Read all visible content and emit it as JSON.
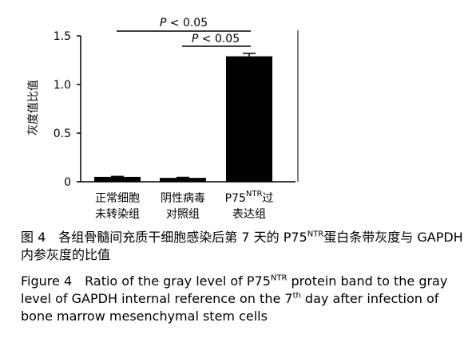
{
  "chart_data": {
    "type": "bar",
    "categories": [
      {
        "line1": "正常细胞",
        "line2": "未转染组"
      },
      {
        "line1": "阴性病毒",
        "line2": "对照组"
      },
      {
        "line1_main": "P75",
        "line1_sup": "NTR",
        "line1_tail": "过",
        "line2": "表达组"
      }
    ],
    "values": [
      0.05,
      0.04,
      1.29
    ],
    "errors": [
      0.005,
      0.005,
      0.03
    ],
    "ylabel": "灰度值比值",
    "ylim": [
      0,
      1.5
    ],
    "yticks": [
      "0",
      "0.5",
      "1.0",
      "1.5"
    ],
    "grid": false,
    "bar_color": "#000000",
    "significance": [
      {
        "label_italic": "P",
        "label_rest": " < 0.05"
      },
      {
        "label_italic": "P",
        "label_rest": " < 0.05"
      }
    ]
  },
  "caption_cn": {
    "prefix": "图 4　各组骨髓间充质干细胞感染后第 7 天的 P75",
    "sup": "NTR",
    "suffix": "蛋白条带灰度与 GAPDH 内参灰度的比值"
  },
  "caption_en": {
    "part1": "Figure 4　Ratio of the gray level of P75",
    "sup1": "NTR",
    "part2": " protein band to the gray level of GAPDH internal reference on the 7",
    "sup2": "th",
    "part3": " day after infection of bone marrow mesenchymal stem cells"
  }
}
